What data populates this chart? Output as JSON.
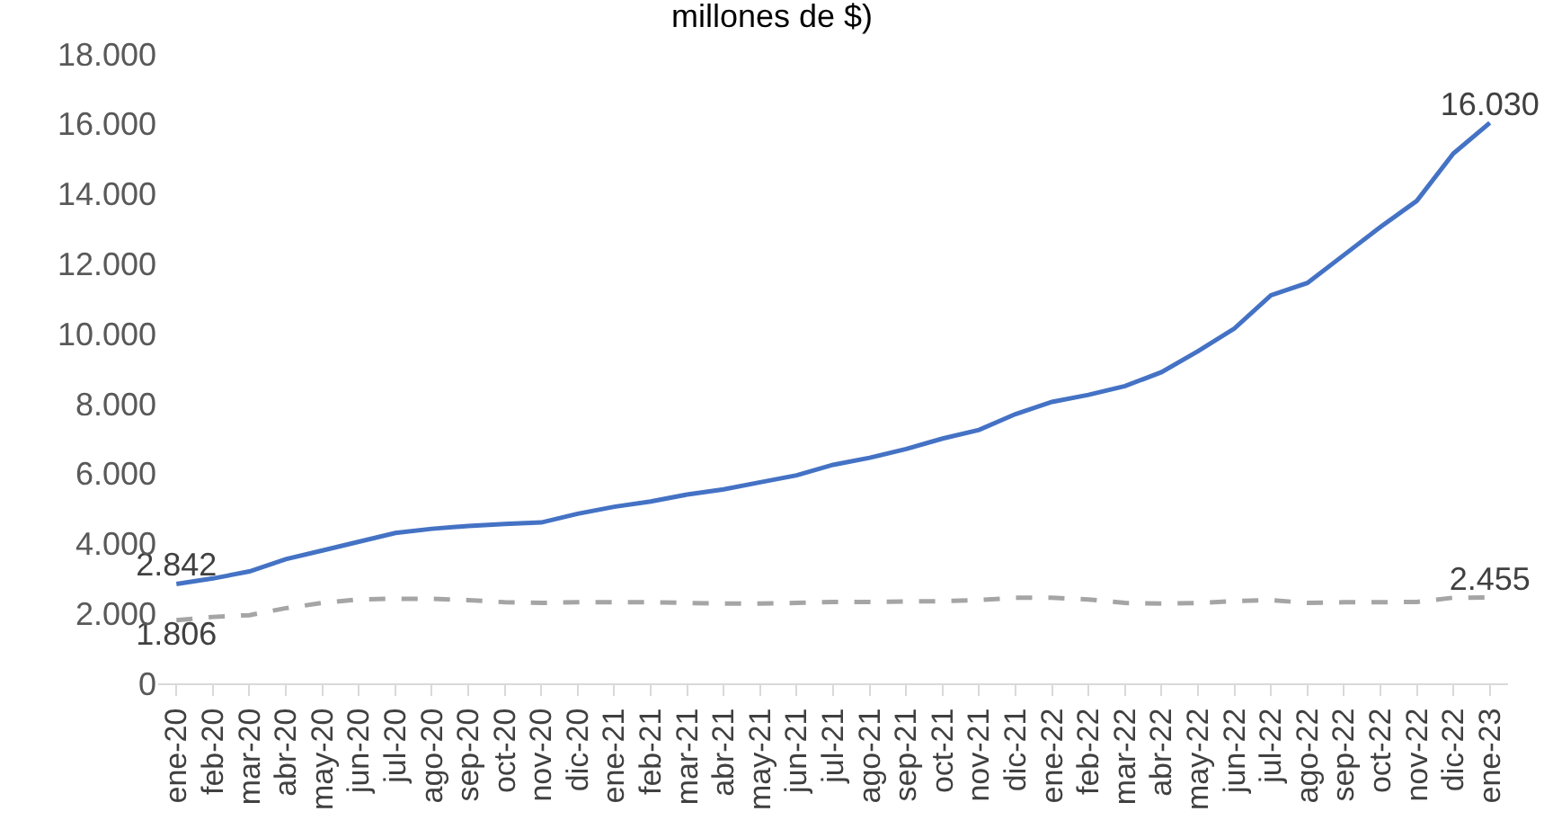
{
  "chart_data": {
    "type": "line",
    "title": "millones de $)",
    "categories": [
      "ene-20",
      "feb-20",
      "mar-20",
      "abr-20",
      "may-20",
      "jun-20",
      "jul-20",
      "ago-20",
      "sep-20",
      "oct-20",
      "nov-20",
      "dic-20",
      "ene-21",
      "feb-21",
      "mar-21",
      "abr-21",
      "may-21",
      "jun-21",
      "jul-21",
      "ago-21",
      "sep-21",
      "oct-21",
      "nov-21",
      "dic-21",
      "ene-22",
      "feb-22",
      "mar-22",
      "abr-22",
      "may-22",
      "jun-22",
      "jul-22",
      "ago-22",
      "sep-22",
      "oct-22",
      "nov-22",
      "dic-22",
      "ene-23"
    ],
    "series": [
      {
        "color": "#4472c4",
        "line_style": "solid",
        "values": [
          2842,
          3000,
          3200,
          3550,
          3800,
          4050,
          4300,
          4420,
          4500,
          4560,
          4600,
          4850,
          5050,
          5200,
          5400,
          5550,
          5750,
          5950,
          6250,
          6450,
          6700,
          7000,
          7250,
          7700,
          8050,
          8250,
          8500,
          8900,
          9500,
          10150,
          11100,
          11450,
          12250,
          13050,
          13800,
          15150,
          16030
        ],
        "value_labels": [
          "2.842",
          null,
          null,
          null,
          null,
          null,
          null,
          null,
          null,
          null,
          null,
          null,
          null,
          null,
          null,
          null,
          null,
          null,
          null,
          null,
          null,
          null,
          null,
          null,
          null,
          null,
          null,
          null,
          null,
          null,
          null,
          null,
          null,
          null,
          null,
          null,
          "16.030"
        ]
      },
      {
        "color": "#a5a5a5",
        "line_style": "dashed",
        "values": [
          1806,
          1900,
          1950,
          2150,
          2300,
          2400,
          2420,
          2420,
          2380,
          2320,
          2300,
          2320,
          2320,
          2320,
          2300,
          2280,
          2280,
          2300,
          2330,
          2330,
          2340,
          2350,
          2380,
          2450,
          2450,
          2400,
          2300,
          2280,
          2300,
          2350,
          2380,
          2300,
          2320,
          2320,
          2330,
          2450,
          2455
        ],
        "value_labels": [
          "1.806",
          null,
          null,
          null,
          null,
          null,
          null,
          null,
          null,
          null,
          null,
          null,
          null,
          null,
          null,
          null,
          null,
          null,
          null,
          null,
          null,
          null,
          null,
          null,
          null,
          null,
          null,
          null,
          null,
          null,
          null,
          null,
          null,
          null,
          null,
          null,
          "2.455"
        ]
      }
    ],
    "ylim": [
      0,
      18000
    ],
    "yticks": [
      0,
      {
        "value": 2000,
        "label": "2.000"
      },
      {
        "value": 4000,
        "label": "4.000"
      },
      {
        "value": 6000,
        "label": "6.000"
      },
      {
        "value": 8000,
        "label": "8.000"
      },
      {
        "value": 10000,
        "label": "10.000"
      },
      {
        "value": 12000,
        "label": "12.000"
      },
      {
        "value": 14000,
        "label": "14.000"
      },
      {
        "value": 16000,
        "label": "16.000"
      },
      {
        "value": 18000,
        "label": "18.000"
      }
    ],
    "grid": false,
    "marker": "none"
  }
}
